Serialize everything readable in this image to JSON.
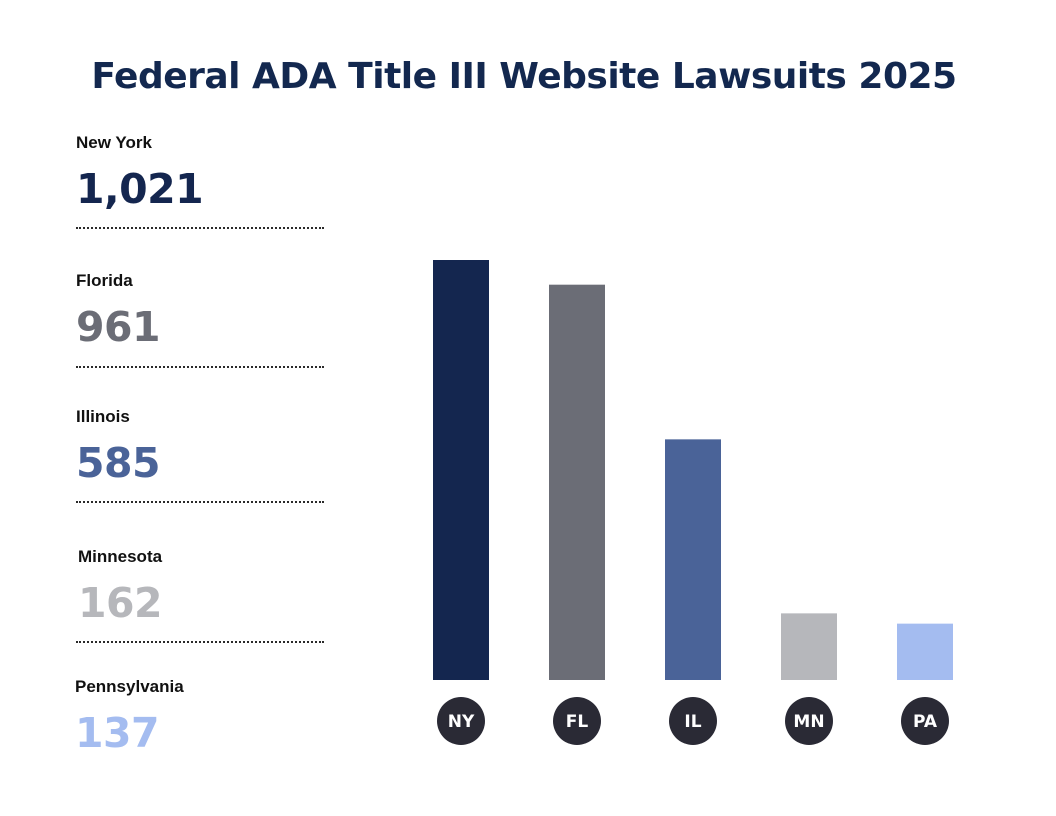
{
  "chart_data": {
    "type": "bar",
    "title": "Federal ADA Title III Website Lawsuits 2025",
    "categories": [
      "NY",
      "FL",
      "IL",
      "MN",
      "PA"
    ],
    "labels": [
      "New York",
      "Florida",
      "Illinois",
      "Minnesota",
      "Pennsylvania"
    ],
    "values": [
      1021,
      961,
      585,
      162,
      137
    ],
    "value_labels": [
      "1,021",
      "961",
      "585",
      "162",
      "137"
    ],
    "colors": [
      "#14264f",
      "#6b6d76",
      "#4a6398",
      "#b6b7bb",
      "#a4bcf0"
    ],
    "ylim": [
      0,
      1021
    ],
    "xlabel": "",
    "ylabel": "",
    "grid": false
  },
  "pill_color": "#2a2a35"
}
